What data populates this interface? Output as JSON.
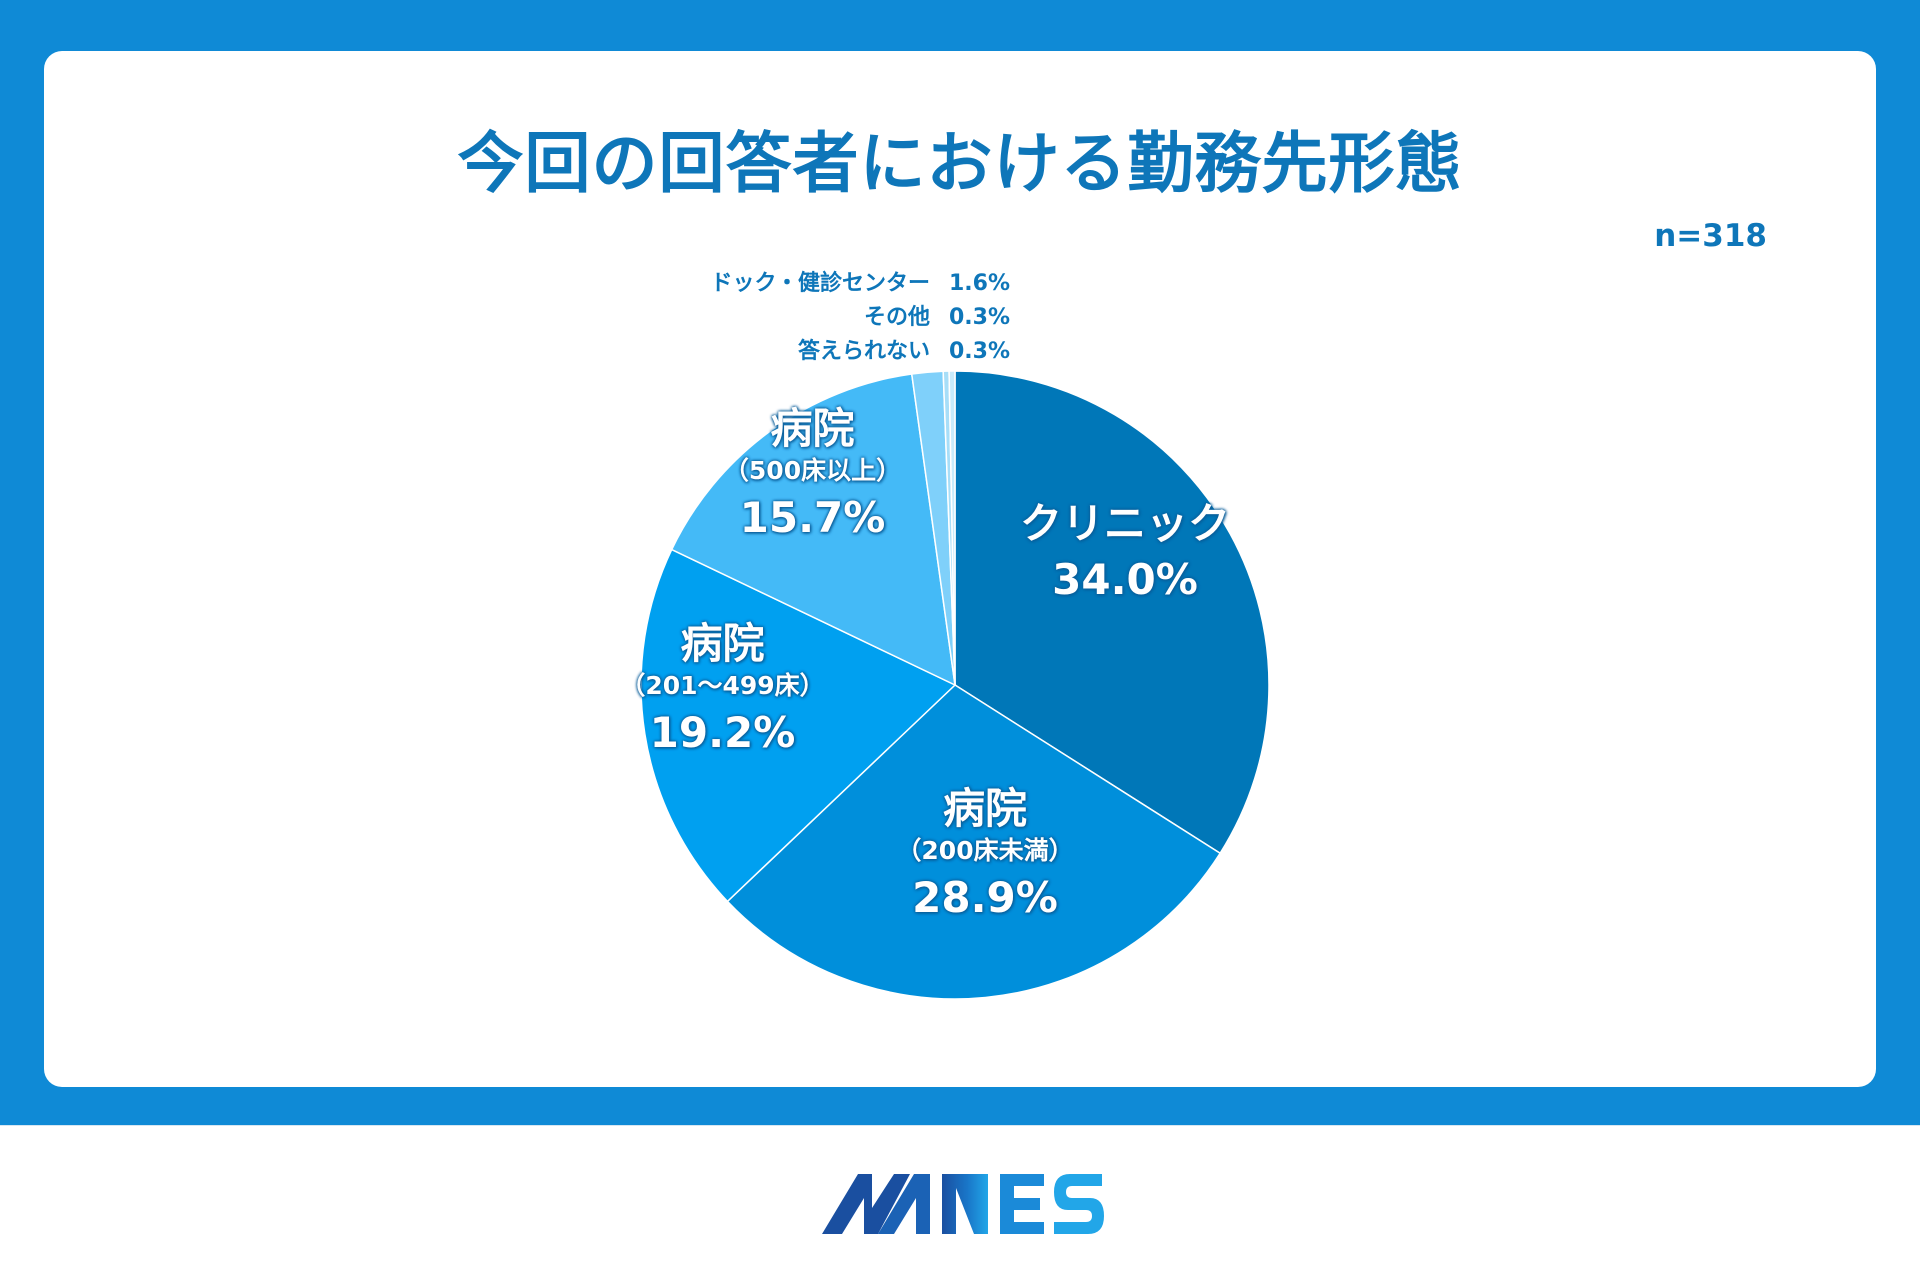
{
  "title": "今回の回答者における勤務先形態",
  "n_label": "n=318",
  "brand": "MNES",
  "colors": {
    "frame": "#0f8ad6",
    "title": "#0e76b9",
    "slice_clinic": "#0077b8",
    "slice_hosp_small": "#008fdb",
    "slice_hosp_mid": "#00a0f0",
    "slice_hosp_large": "#44baf7",
    "slice_dock": "#7fd0fa",
    "slice_other": "#a7def8",
    "slice_noanswer": "#c8ebfb"
  },
  "chart_data": {
    "type": "pie",
    "slices": [
      {
        "key": "clinic",
        "name": "クリニック",
        "sub": "",
        "value": 34.0,
        "label": "34.0%"
      },
      {
        "key": "hosp_small",
        "name": "病院",
        "sub": "（200床未満）",
        "value": 28.9,
        "label": "28.9%"
      },
      {
        "key": "hosp_mid",
        "name": "病院",
        "sub": "（201～499床）",
        "value": 19.2,
        "label": "19.2%"
      },
      {
        "key": "hosp_large",
        "name": "病院",
        "sub": "（500床以上）",
        "value": 15.7,
        "label": "15.7%"
      },
      {
        "key": "dock",
        "name": "ドック・健診センター",
        "sub": "",
        "value": 1.6,
        "label": "1.6%"
      },
      {
        "key": "other",
        "name": "その他",
        "sub": "",
        "value": 0.3,
        "label": "0.3%"
      },
      {
        "key": "noanswer",
        "name": "答えられない",
        "sub": "",
        "value": 0.3,
        "label": "0.3%"
      }
    ]
  }
}
